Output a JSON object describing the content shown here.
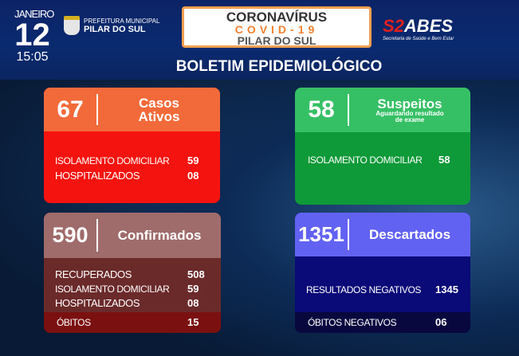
{
  "header": {
    "month": "JANEIRO",
    "day": "12",
    "time": "15:05",
    "prefeitura_line1": "PREFEITURA MUNICIPAL",
    "prefeitura_line2": "PILAR DO SUL",
    "banner_line1": "CORONAVÍRUS",
    "banner_line2": "COVID-19",
    "banner_line3": "PILAR DO SUL",
    "sabes_logo_red": "S2",
    "sabes_logo": "ABES",
    "sabes_sub": "Secretaria de Saúde e Bem Estar",
    "title": "BOLETIM EPIDEMIOLÓGICO"
  },
  "ativos": {
    "count": "67",
    "label1": "Casos",
    "label2": "Ativos",
    "rows": [
      {
        "label": "ISOLAMENTO DOMICILIAR",
        "value": "59"
      },
      {
        "label": "HOSPITALIZADOS",
        "value": "08"
      }
    ],
    "color_head": "#f26a3a",
    "color_body": "#f5130f"
  },
  "suspeitos": {
    "count": "58",
    "label": "Suspeitos",
    "sub1": "Aguardando resultado",
    "sub2": "de exame",
    "rows": [
      {
        "label": "ISOLAMENTO DOMICILIAR",
        "value": "58"
      }
    ],
    "color_head": "#36c065",
    "color_body": "#0e9a38"
  },
  "confirmados": {
    "count": "590",
    "label": "Confirmados",
    "rows": [
      {
        "label": "RECUPERADOS",
        "value": "508"
      },
      {
        "label": "ISOLAMENTO DOMICILIAR",
        "value": "59"
      },
      {
        "label": "HOSPITALIZADOS",
        "value": "08"
      },
      {
        "label": "ÓBITOS",
        "value": "15"
      }
    ],
    "color_head": "#a06b6b",
    "color_body": "#6b2a2a"
  },
  "descartados": {
    "count": "1351",
    "label": "Descartados",
    "rows": [
      {
        "label": "RESULTADOS NEGATIVOS",
        "value": "1345"
      },
      {
        "label": "ÓBITOS NEGATIVOS",
        "value": "06"
      }
    ],
    "color_head": "#6262f2",
    "color_body": "#0a0a78"
  }
}
